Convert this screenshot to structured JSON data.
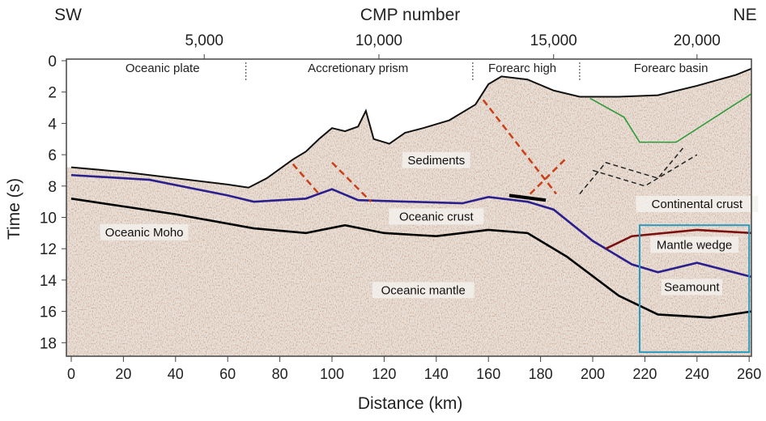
{
  "chart_data": {
    "type": "line",
    "title": "",
    "corner_labels": {
      "left": "SW",
      "right": "NE"
    },
    "top_axis": {
      "label": "CMP number",
      "ticks": [
        "5,000",
        "10,000",
        "15,000",
        "20,000"
      ],
      "tick_km": [
        51,
        118,
        185,
        240
      ]
    },
    "xlabel": "Distance (km)",
    "ylabel": "Time (s)",
    "xlim": [
      0,
      262
    ],
    "ylim": [
      19,
      0
    ],
    "xticks": [
      0,
      20,
      40,
      60,
      80,
      100,
      120,
      140,
      160,
      180,
      200,
      220,
      240,
      260
    ],
    "yticks": [
      0,
      2,
      4,
      6,
      8,
      10,
      12,
      14,
      16,
      18
    ],
    "zones": [
      {
        "label": "Oceanic plate",
        "km": 35
      },
      {
        "label": "Accretionary prism",
        "km": 110
      },
      {
        "label": "Forearc high",
        "km": 173
      },
      {
        "label": "Forearc basin",
        "km": 230
      }
    ],
    "zone_boundaries_km": [
      67,
      154,
      195
    ],
    "series": [
      {
        "name": "Seafloor",
        "color": "#111111",
        "x": [
          0,
          20,
          40,
          60,
          68,
          75,
          80,
          85,
          90,
          95,
          100,
          105,
          110,
          113,
          116,
          122,
          128,
          135,
          145,
          155,
          160,
          165,
          175,
          185,
          195,
          210,
          225,
          240,
          255,
          261
        ],
        "y": [
          6.8,
          7.1,
          7.5,
          7.9,
          8.1,
          7.5,
          6.9,
          6.3,
          5.8,
          5.0,
          4.3,
          4.5,
          4.2,
          3.2,
          5.0,
          5.3,
          4.6,
          4.3,
          3.8,
          2.8,
          1.5,
          1.0,
          1.2,
          1.9,
          2.3,
          2.3,
          2.2,
          1.6,
          0.9,
          0.5
        ]
      },
      {
        "name": "Oceanic crust top",
        "color": "#2a1f8c",
        "x": [
          0,
          30,
          60,
          70,
          90,
          100,
          110,
          130,
          150,
          160,
          175,
          185,
          200,
          215,
          225,
          240,
          261
        ],
        "y": [
          7.3,
          7.6,
          8.6,
          9.0,
          8.8,
          8.2,
          8.9,
          9.0,
          9.1,
          8.7,
          9.0,
          9.5,
          11.5,
          13.0,
          13.5,
          12.9,
          13.8
        ]
      },
      {
        "name": "Oceanic Moho",
        "color": "#000000",
        "x": [
          0,
          40,
          70,
          90,
          105,
          120,
          140,
          160,
          175,
          190,
          210,
          225,
          245,
          261
        ],
        "y": [
          8.8,
          9.8,
          10.7,
          11.0,
          10.5,
          11.0,
          11.2,
          10.8,
          11.0,
          12.5,
          15.0,
          16.2,
          16.4,
          16.0
        ]
      },
      {
        "name": "Mantle wedge top",
        "color": "#7a1010",
        "x": [
          205,
          215,
          240,
          261
        ],
        "y": [
          12.0,
          11.2,
          10.8,
          11.0
        ]
      }
    ],
    "annotations": [
      {
        "text": "Sediments",
        "km": 140,
        "s": 6.5
      },
      {
        "text": "Oceanic crust",
        "km": 140,
        "s": 10.1
      },
      {
        "text": "Oceanic Moho",
        "km": 28,
        "s": 11.1
      },
      {
        "text": "Oceanic mantle",
        "km": 135,
        "s": 14.8
      },
      {
        "text": "Continental crust",
        "km": 240,
        "s": 9.3
      },
      {
        "text": "Mantle wedge",
        "km": 239,
        "s": 11.9
      },
      {
        "text": "Seamount",
        "km": 238,
        "s": 14.6
      }
    ],
    "highlight_box": {
      "color": "#2a9bbf",
      "x": [
        218,
        260
      ],
      "y": [
        10.5,
        18.6
      ]
    }
  }
}
